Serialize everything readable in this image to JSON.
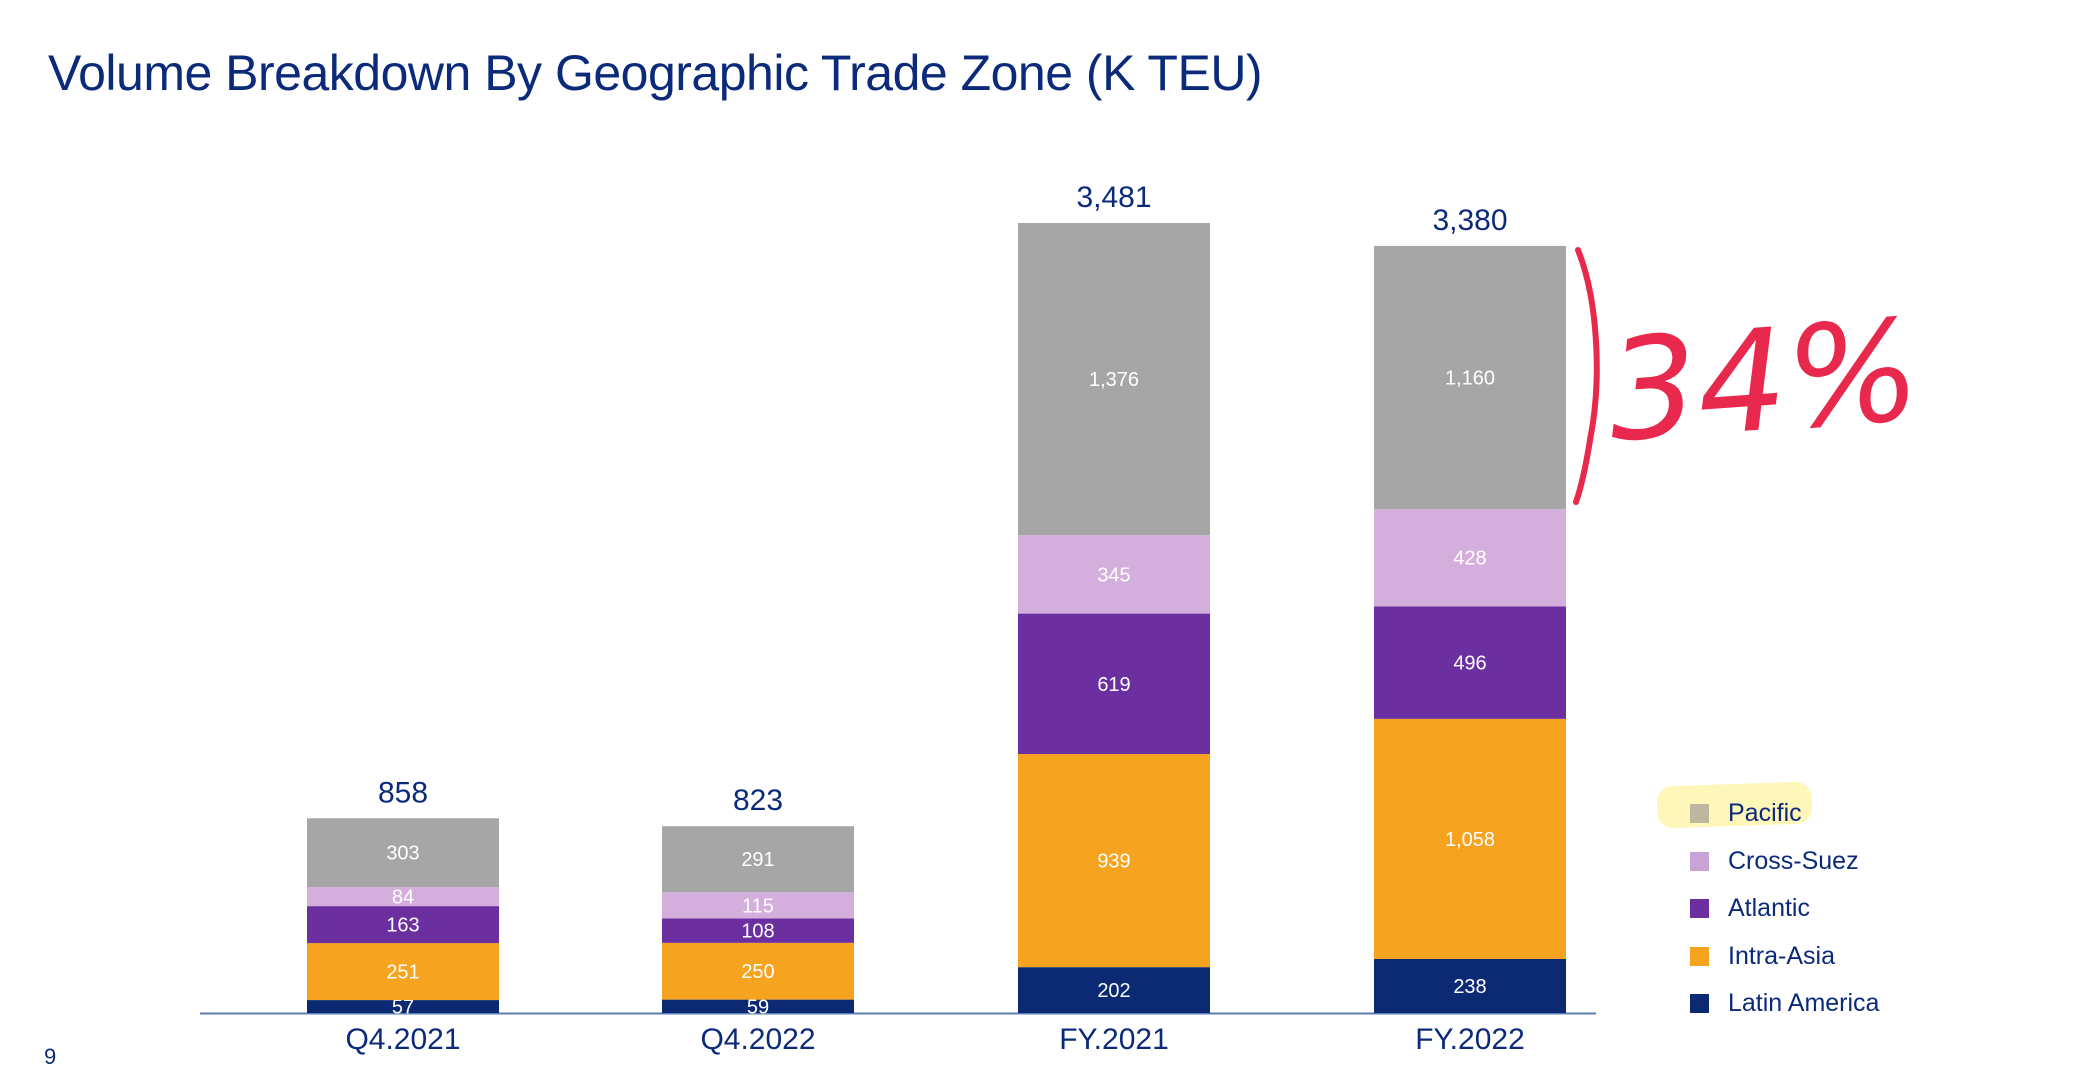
{
  "page": {
    "title": "Volume Breakdown By Geographic Trade Zone (K TEU)",
    "page_number": "9",
    "handwritten_note": "34%",
    "colors": {
      "title": "#0b2a7a",
      "axis": "#5b7fb5",
      "annotation": "#e8294d",
      "highlight": "#fff082"
    }
  },
  "chart_data": {
    "type": "bar",
    "stacked": true,
    "title": "Volume Breakdown By Geographic Trade Zone (K TEU)",
    "xlabel": "",
    "ylabel": "",
    "ylim": [
      0,
      3481
    ],
    "grid": false,
    "legend_position": "right-bottom",
    "categories": [
      "Q4.2021",
      "Q4.2022",
      "FY.2021",
      "FY.2022"
    ],
    "totals": [
      "858",
      "823",
      "3,481",
      "3,380"
    ],
    "series": [
      {
        "name": "Latin America",
        "color": "#0c2a74",
        "values": [
          57,
          59,
          202,
          238
        ],
        "labels": [
          "57",
          "59",
          "202",
          "238"
        ]
      },
      {
        "name": "Intra-Asia",
        "color": "#f6a31f",
        "values": [
          251,
          250,
          939,
          1058
        ],
        "labels": [
          "251",
          "250",
          "939",
          "1,058"
        ]
      },
      {
        "name": "Atlantic",
        "color": "#6c2fa0",
        "values": [
          163,
          108,
          619,
          496
        ],
        "labels": [
          "163",
          "108",
          "619",
          "496"
        ]
      },
      {
        "name": "Cross-Suez",
        "color": "#d4afdd",
        "values": [
          84,
          115,
          345,
          428
        ],
        "labels": [
          "84",
          "115",
          "345",
          "428"
        ]
      },
      {
        "name": "Pacific",
        "color": "#a6a6a6",
        "values": [
          303,
          291,
          1376,
          1160
        ],
        "labels": [
          "303",
          "291",
          "1,376",
          "1,160"
        ]
      }
    ],
    "legend_order": [
      "Pacific",
      "Cross-Suez",
      "Atlantic",
      "Intra-Asia",
      "Latin America"
    ],
    "legend_colors": [
      "#bdb7a0",
      "#c9a3d6",
      "#6c2fa0",
      "#f6a31f",
      "#0c2a74"
    ]
  }
}
